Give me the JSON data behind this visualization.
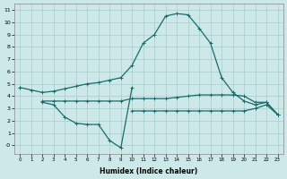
{
  "xlabel": "Humidex (Indice chaleur)",
  "x": [
    0,
    1,
    2,
    3,
    4,
    5,
    6,
    7,
    8,
    9,
    10,
    11,
    12,
    13,
    14,
    15,
    16,
    17,
    18,
    19,
    20,
    21,
    22,
    23
  ],
  "line1": [
    4.7,
    4.5,
    4.3,
    4.4,
    4.6,
    4.8,
    5.0,
    5.1,
    5.3,
    5.5,
    6.5,
    8.3,
    9.0,
    10.5,
    10.7,
    10.6,
    9.5,
    8.3,
    5.5,
    4.3,
    3.6,
    3.3,
    3.5,
    2.5
  ],
  "line2": [
    4.7,
    null,
    3.6,
    3.6,
    3.6,
    3.6,
    3.6,
    3.6,
    3.6,
    3.6,
    3.8,
    3.8,
    3.8,
    3.8,
    3.9,
    4.0,
    4.1,
    4.1,
    4.1,
    4.1,
    4.0,
    3.5,
    3.5,
    2.5
  ],
  "line3": [
    null,
    null,
    3.5,
    3.3,
    2.3,
    1.8,
    1.7,
    1.7,
    0.4,
    -0.2,
    4.7,
    null,
    null,
    null,
    null,
    null,
    null,
    null,
    null,
    null,
    null,
    null,
    null,
    null
  ],
  "line4": [
    null,
    null,
    null,
    null,
    null,
    null,
    null,
    null,
    null,
    null,
    2.8,
    2.8,
    2.8,
    2.8,
    2.8,
    2.8,
    2.8,
    2.8,
    2.8,
    2.8,
    2.8,
    3.0,
    3.3,
    2.5
  ],
  "color": "#1a6b6b",
  "bg_color": "#cce8e8",
  "grid_color": "#aacccc",
  "ylim": [
    -0.7,
    11.5
  ],
  "yticks": [
    0,
    1,
    2,
    3,
    4,
    5,
    6,
    7,
    8,
    9,
    10,
    11
  ],
  "ytick_labels": [
    "-0",
    "1",
    "2",
    "3",
    "4",
    "5",
    "6",
    "7",
    "8",
    "9",
    "10",
    "11"
  ]
}
